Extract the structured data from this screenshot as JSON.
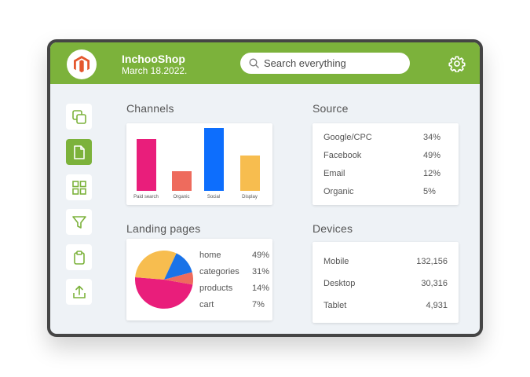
{
  "header": {
    "shop_name": "InchooShop",
    "date": "March 18.2022.",
    "search_placeholder": "Search everything",
    "brand_color": "#7cb23b",
    "logo_color": "#e4572e"
  },
  "sidebar": {
    "items": [
      {
        "icon": "copy-icon",
        "active": false
      },
      {
        "icon": "document-icon",
        "active": true
      },
      {
        "icon": "grid-icon",
        "active": false
      },
      {
        "icon": "filter-icon",
        "active": false
      },
      {
        "icon": "clipboard-icon",
        "active": false
      },
      {
        "icon": "upload-icon",
        "active": false
      }
    ]
  },
  "channels": {
    "title": "Channels",
    "chart_data": {
      "type": "bar",
      "categories": [
        "Paid search",
        "Organic",
        "Social",
        "Display"
      ],
      "values": [
        66,
        25,
        80,
        45
      ],
      "colors": [
        "#e91e7b",
        "#ee6b5d",
        "#0d6efd",
        "#f7bd4f"
      ],
      "ylim": [
        0,
        80
      ]
    }
  },
  "source": {
    "title": "Source",
    "rows": [
      {
        "label": "Google/CPC",
        "value": "34%"
      },
      {
        "label": "Facebook",
        "value": "49%"
      },
      {
        "label": "Email",
        "value": "12%"
      },
      {
        "label": "Organic",
        "value": "5%"
      }
    ]
  },
  "landing": {
    "title": "Landing pages",
    "chart_data": {
      "type": "pie",
      "labels": [
        "home",
        "categories",
        "products",
        "cart"
      ],
      "values": [
        49,
        31,
        14,
        7
      ],
      "display": [
        "49%",
        "31%",
        "14%",
        "7%"
      ],
      "colors": [
        "#e91e7b",
        "#f7bd4f",
        "#1a73e8",
        "#ee6b5d"
      ]
    }
  },
  "devices": {
    "title": "Devices",
    "rows": [
      {
        "label": "Mobile",
        "value": "132,156"
      },
      {
        "label": "Desktop",
        "value": "30,316"
      },
      {
        "label": "Tablet",
        "value": "4,931"
      }
    ]
  }
}
